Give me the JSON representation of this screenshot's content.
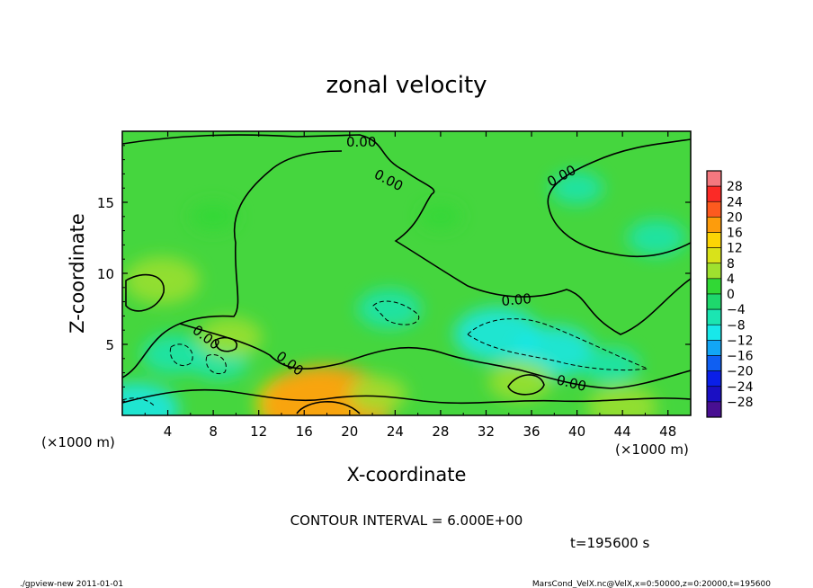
{
  "chart_data": {
    "type": "heatmap",
    "title": "zonal velocity",
    "xlabel": "X-coordinate",
    "ylabel": "Z-coordinate",
    "x_unit_label": "(×1000 m)",
    "x_unit_label_right": "(×1000 m)",
    "xlim": [
      0,
      50
    ],
    "ylim": [
      0,
      20
    ],
    "x_ticks": [
      4,
      8,
      12,
      16,
      20,
      24,
      28,
      32,
      36,
      40,
      44,
      48
    ],
    "y_ticks": [
      5,
      10,
      15
    ],
    "contour_interval_text": "CONTOUR INTERVAL = 6.000E+00",
    "contour_label": "0.00",
    "time_text": "t=195600 s",
    "colorbar": {
      "labels": [
        "28",
        "24",
        "20",
        "16",
        "12",
        "8",
        "4",
        "0",
        "−4",
        "−8",
        "−12",
        "−16",
        "−20",
        "−24",
        "−28"
      ],
      "levels": [
        32,
        28,
        24,
        20,
        16,
        12,
        8,
        4,
        0,
        -4,
        -8,
        -12,
        -16,
        -20,
        -24,
        -28,
        -32
      ],
      "colors": [
        "#f4787f",
        "#fb2a26",
        "#fd5a1f",
        "#fd9c0c",
        "#fcd405",
        "#d9e21a",
        "#9fe12f",
        "#31d835",
        "#1ed86c",
        "#1be5b2",
        "#18e8ea",
        "#12a6f5",
        "#0f5ff2",
        "#0a1fe8",
        "#1a0fc3",
        "#480f92"
      ]
    },
    "field_blobs": [
      {
        "x": 3.5,
        "z": 9.5,
        "value": 8
      },
      {
        "x": 4.5,
        "z": 4.3,
        "value": -6
      },
      {
        "x": 8.5,
        "z": 3.8,
        "value": -5
      },
      {
        "x": 9.5,
        "z": 5.5,
        "value": 6
      },
      {
        "x": 16.5,
        "z": 0.8,
        "value": 14
      },
      {
        "x": 18.0,
        "z": 0.7,
        "value": 18
      },
      {
        "x": 22.5,
        "z": 1.5,
        "value": 5
      },
      {
        "x": 23.5,
        "z": 7.5,
        "value": -6
      },
      {
        "x": 33.0,
        "z": 5.7,
        "value": -10
      },
      {
        "x": 38.0,
        "z": 4.5,
        "value": -9
      },
      {
        "x": 43.0,
        "z": 3.5,
        "value": -5
      },
      {
        "x": 35.0,
        "z": 2.4,
        "value": 6
      },
      {
        "x": 44.0,
        "z": 0.6,
        "value": 7
      },
      {
        "x": 1.2,
        "z": 0.4,
        "value": -10
      },
      {
        "x": 47.0,
        "z": 12.5,
        "value": -5
      },
      {
        "x": 40.0,
        "z": 16.0,
        "value": -4
      },
      {
        "x": 28.0,
        "z": 14.0,
        "value": 2
      },
      {
        "x": 8.0,
        "z": 14.0,
        "value": 3
      }
    ]
  },
  "footer": {
    "left": "./gpview-new   2011-01-01",
    "right": "MarsCond_VelX.nc@VelX,x=0:50000,z=0:20000,t=195600"
  }
}
